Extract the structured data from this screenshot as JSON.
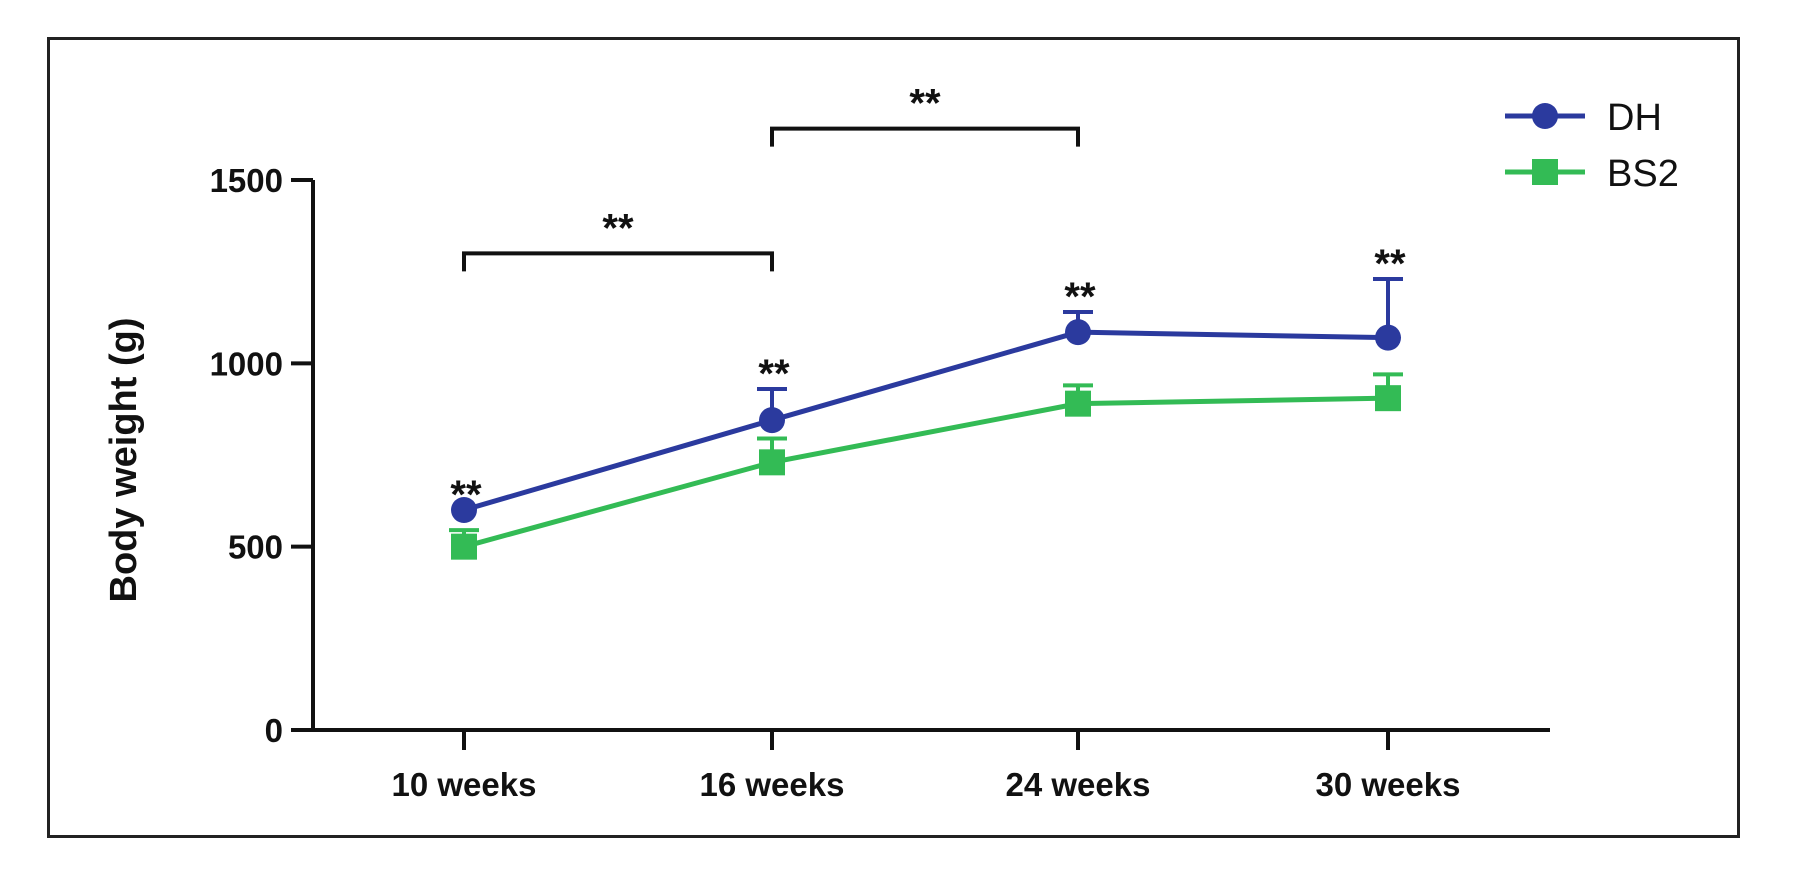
{
  "chart_data": {
    "type": "line",
    "title": "",
    "xlabel": "",
    "ylabel": "Body weight (g)",
    "categories": [
      "10 weeks",
      "16 weeks",
      "24 weeks",
      "30 weeks"
    ],
    "ylim": [
      0,
      1500
    ],
    "yticks": [
      0,
      500,
      1000,
      1500
    ],
    "grid": false,
    "legend_position": "top-right",
    "series": [
      {
        "name": "DH",
        "color": "#2b3a9e",
        "marker": "circle",
        "values": [
          600,
          845,
          1085,
          1070
        ],
        "error": [
          0,
          85,
          55,
          160
        ]
      },
      {
        "name": "BS2",
        "color": "#33bb55",
        "marker": "square",
        "values": [
          500,
          730,
          890,
          905
        ],
        "error": [
          45,
          65,
          50,
          65
        ]
      }
    ],
    "point_annotations": [
      {
        "category": "10 weeks",
        "text": "**"
      },
      {
        "category": "16 weeks",
        "text": "**"
      },
      {
        "category": "24 weeks",
        "text": "**"
      },
      {
        "category": "30 weeks",
        "text": "**"
      }
    ],
    "brackets": [
      {
        "from": "10 weeks",
        "to": "16 weeks",
        "text": "**"
      },
      {
        "from": "16 weeks",
        "to": "24 weeks",
        "text": "**"
      }
    ]
  }
}
